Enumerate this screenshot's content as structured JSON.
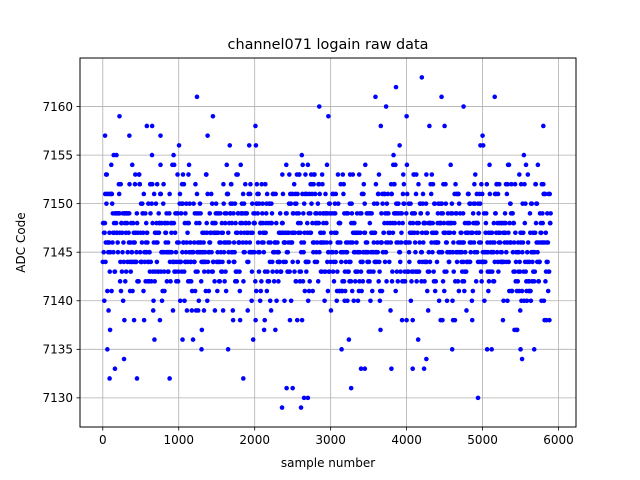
{
  "chart_data": {
    "type": "scatter",
    "title": "channel071 logain raw data",
    "xlabel": "sample number",
    "ylabel": "ADC Code",
    "xlim": [
      -300,
      6230
    ],
    "ylim": [
      7127,
      7165
    ],
    "xticks": [
      0,
      1000,
      2000,
      3000,
      4000,
      5000,
      6000
    ],
    "yticks": [
      7130,
      7135,
      7140,
      7145,
      7150,
      7155,
      7160
    ],
    "grid": true,
    "marker_color": "#0000ff",
    "n_samples": 5900,
    "bulk_range": [
      7135,
      7156
    ],
    "outliers": [
      {
        "x": 30,
        "y": 7157
      },
      {
        "x": 60,
        "y": 7135
      },
      {
        "x": 90,
        "y": 7132
      },
      {
        "x": 160,
        "y": 7133
      },
      {
        "x": 220,
        "y": 7159
      },
      {
        "x": 280,
        "y": 7134
      },
      {
        "x": 350,
        "y": 7157
      },
      {
        "x": 450,
        "y": 7132
      },
      {
        "x": 580,
        "y": 7158
      },
      {
        "x": 650,
        "y": 7158
      },
      {
        "x": 760,
        "y": 7157
      },
      {
        "x": 880,
        "y": 7132
      },
      {
        "x": 1050,
        "y": 7136
      },
      {
        "x": 1240,
        "y": 7161
      },
      {
        "x": 1300,
        "y": 7135
      },
      {
        "x": 1380,
        "y": 7157
      },
      {
        "x": 1450,
        "y": 7159
      },
      {
        "x": 1650,
        "y": 7135
      },
      {
        "x": 1850,
        "y": 7132
      },
      {
        "x": 2010,
        "y": 7158
      },
      {
        "x": 2360,
        "y": 7129
      },
      {
        "x": 2420,
        "y": 7131
      },
      {
        "x": 2500,
        "y": 7131
      },
      {
        "x": 2610,
        "y": 7129
      },
      {
        "x": 2650,
        "y": 7130
      },
      {
        "x": 2700,
        "y": 7130
      },
      {
        "x": 2850,
        "y": 7160
      },
      {
        "x": 2970,
        "y": 7159
      },
      {
        "x": 3270,
        "y": 7131
      },
      {
        "x": 3400,
        "y": 7133
      },
      {
        "x": 3450,
        "y": 7133
      },
      {
        "x": 3590,
        "y": 7161
      },
      {
        "x": 3660,
        "y": 7158
      },
      {
        "x": 3730,
        "y": 7160
      },
      {
        "x": 3800,
        "y": 7133
      },
      {
        "x": 3860,
        "y": 7162
      },
      {
        "x": 4000,
        "y": 7159
      },
      {
        "x": 4080,
        "y": 7133
      },
      {
        "x": 4200,
        "y": 7163
      },
      {
        "x": 4230,
        "y": 7133
      },
      {
        "x": 4260,
        "y": 7134
      },
      {
        "x": 4300,
        "y": 7158
      },
      {
        "x": 4460,
        "y": 7161
      },
      {
        "x": 4500,
        "y": 7158
      },
      {
        "x": 4600,
        "y": 7135
      },
      {
        "x": 4750,
        "y": 7160
      },
      {
        "x": 4940,
        "y": 7130
      },
      {
        "x": 5000,
        "y": 7157
      },
      {
        "x": 5120,
        "y": 7135
      },
      {
        "x": 5160,
        "y": 7161
      },
      {
        "x": 5500,
        "y": 7135
      },
      {
        "x": 5520,
        "y": 7134
      },
      {
        "x": 5680,
        "y": 7135
      },
      {
        "x": 5800,
        "y": 7158
      }
    ]
  }
}
